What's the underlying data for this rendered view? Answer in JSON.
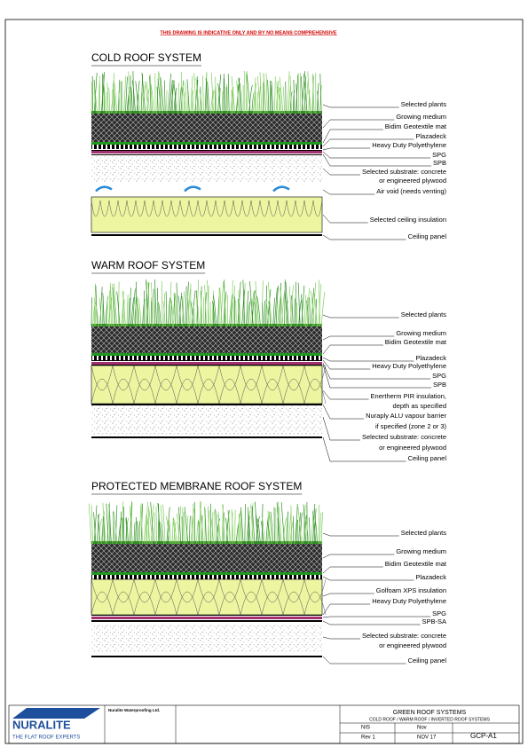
{
  "header": {
    "note": "THIS DRAWING IS INDICATIVE ONLY AND BY NO MEANS COMPREHENSIVE"
  },
  "sections": [
    {
      "title": "COLD ROOF SYSTEM",
      "labels": [
        [
          "Selected plants"
        ],
        [
          "Growing medium"
        ],
        [
          "Bidim Geotextile mat"
        ],
        [
          "Plazadeck"
        ],
        [
          "Heavy Duty Polyethylene"
        ],
        [
          "SPG"
        ],
        [
          "SPB"
        ],
        [
          "Selected substrate: concrete",
          "or engineered plywood"
        ],
        [
          "Air void (needs venting)"
        ],
        [
          "Selected ceiling insulation"
        ],
        [
          "Ceiling panel"
        ]
      ]
    },
    {
      "title": "WARM ROOF SYSTEM",
      "labels": [
        [
          "Selected plants"
        ],
        [
          "Growing medium"
        ],
        [
          "Bidim Geotextile mat"
        ],
        [
          "Plazadeck"
        ],
        [
          "Heavy Duty Polyethylene"
        ],
        [
          "SPG"
        ],
        [
          "SPB"
        ],
        [
          "Enertherm PIR insulation,",
          "depth as specified"
        ],
        [
          "Nuraply ALU vapour barrier",
          "if specified (zone 2 or 3)"
        ],
        [
          "Selected substrate: concrete",
          "or engineered plywood"
        ],
        [
          "Ceiling panel"
        ]
      ]
    },
    {
      "title": "PROTECTED MEMBRANE ROOF SYSTEM",
      "labels": [
        [
          "Selected plants"
        ],
        [
          "Growing medium"
        ],
        [
          "Bidim Geotextile mat"
        ],
        [
          "Plazadeck"
        ],
        [
          "Golfoam XPS insulation"
        ],
        [
          "Heavy Duty Polyethylene"
        ],
        [
          "SPG"
        ],
        [
          "SPB-SA"
        ],
        [
          "Selected substrate: concrete",
          "or engineered plywood"
        ],
        [
          "Ceiling panel"
        ]
      ]
    }
  ],
  "title_block": {
    "logo": "NURALITE",
    "tagline": "THE FLAT ROOF EXPERTS",
    "company": "Nuralite Waterproofing Ltd.",
    "drawing_title": "GREEN ROOF SYSTEMS",
    "subtitle": "COLD ROOF / WARM ROOF / INVERTED ROOF SYSTEMS",
    "drawn": "NIS",
    "date": "Nov",
    "revision": "Rev 1",
    "rev_date": "NOV 17",
    "number": "GCP-A1"
  }
}
